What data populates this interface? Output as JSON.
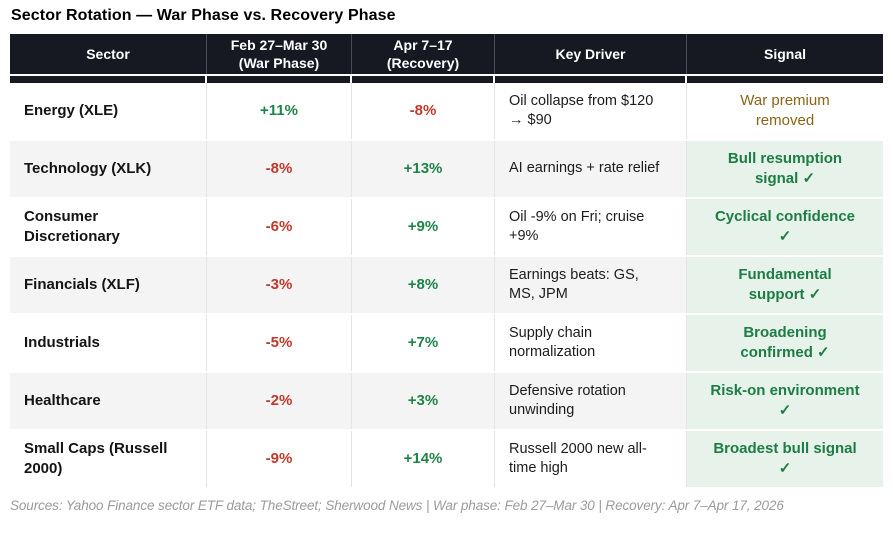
{
  "colors": {
    "header_bg": "#171922",
    "positive": "#1e8449",
    "negative": "#c0392b",
    "gold": "#8a6517",
    "signal_green": "#1d7d44",
    "signal_bg": "#e6f2ea",
    "row_alt_bg": "#f4f4f4"
  },
  "chart_data": {
    "type": "table",
    "title": "Sector Rotation — War Phase vs. Recovery Phase",
    "columns": [
      {
        "key": "sector",
        "label": "Sector"
      },
      {
        "key": "war-phase",
        "label": "Feb 27–Mar 30\n(War Phase)"
      },
      {
        "key": "recovery",
        "label": "Apr 7–17\n(Recovery)"
      },
      {
        "key": "key-driver",
        "label": "Key Driver"
      },
      {
        "key": "signal",
        "label": "Signal"
      }
    ],
    "rows": [
      {
        "sector": "Energy (XLE)",
        "war_phase": "+11%",
        "recovery": "-8%",
        "key_driver": "Oil collapse from $120 → $90",
        "signal": "War premium removed",
        "signal_style": "gold"
      },
      {
        "sector": "Technology (XLK)",
        "war_phase": "-8%",
        "recovery": "+13%",
        "key_driver": "AI earnings + rate relief",
        "signal": "Bull resumption signal ✓",
        "signal_style": "green"
      },
      {
        "sector": "Consumer Discretionary",
        "war_phase": "-6%",
        "recovery": "+9%",
        "key_driver": "Oil -9% on Fri; cruise +9%",
        "signal": "Cyclical confidence ✓",
        "signal_style": "green"
      },
      {
        "sector": "Financials (XLF)",
        "war_phase": "-3%",
        "recovery": "+8%",
        "key_driver": "Earnings beats: GS, MS, JPM",
        "signal": "Fundamental support ✓",
        "signal_style": "green"
      },
      {
        "sector": "Industrials",
        "war_phase": "-5%",
        "recovery": "+7%",
        "key_driver": "Supply chain normalization",
        "signal": "Broadening confirmed ✓",
        "signal_style": "green"
      },
      {
        "sector": "Healthcare",
        "war_phase": "-2%",
        "recovery": "+3%",
        "key_driver": "Defensive rotation unwinding",
        "signal": "Risk-on environment ✓",
        "signal_style": "green"
      },
      {
        "sector": "Small Caps (Russell 2000)",
        "war_phase": "-9%",
        "recovery": "+14%",
        "key_driver": "Russell 2000 new all-time high",
        "signal": "Broadest bull signal ✓",
        "signal_style": "green"
      }
    ],
    "source": "Sources: Yahoo Finance sector ETF data; TheStreet; Sherwood News | War phase: Feb 27–Mar 30 | Recovery: Apr 7–Apr 17, 2026"
  }
}
